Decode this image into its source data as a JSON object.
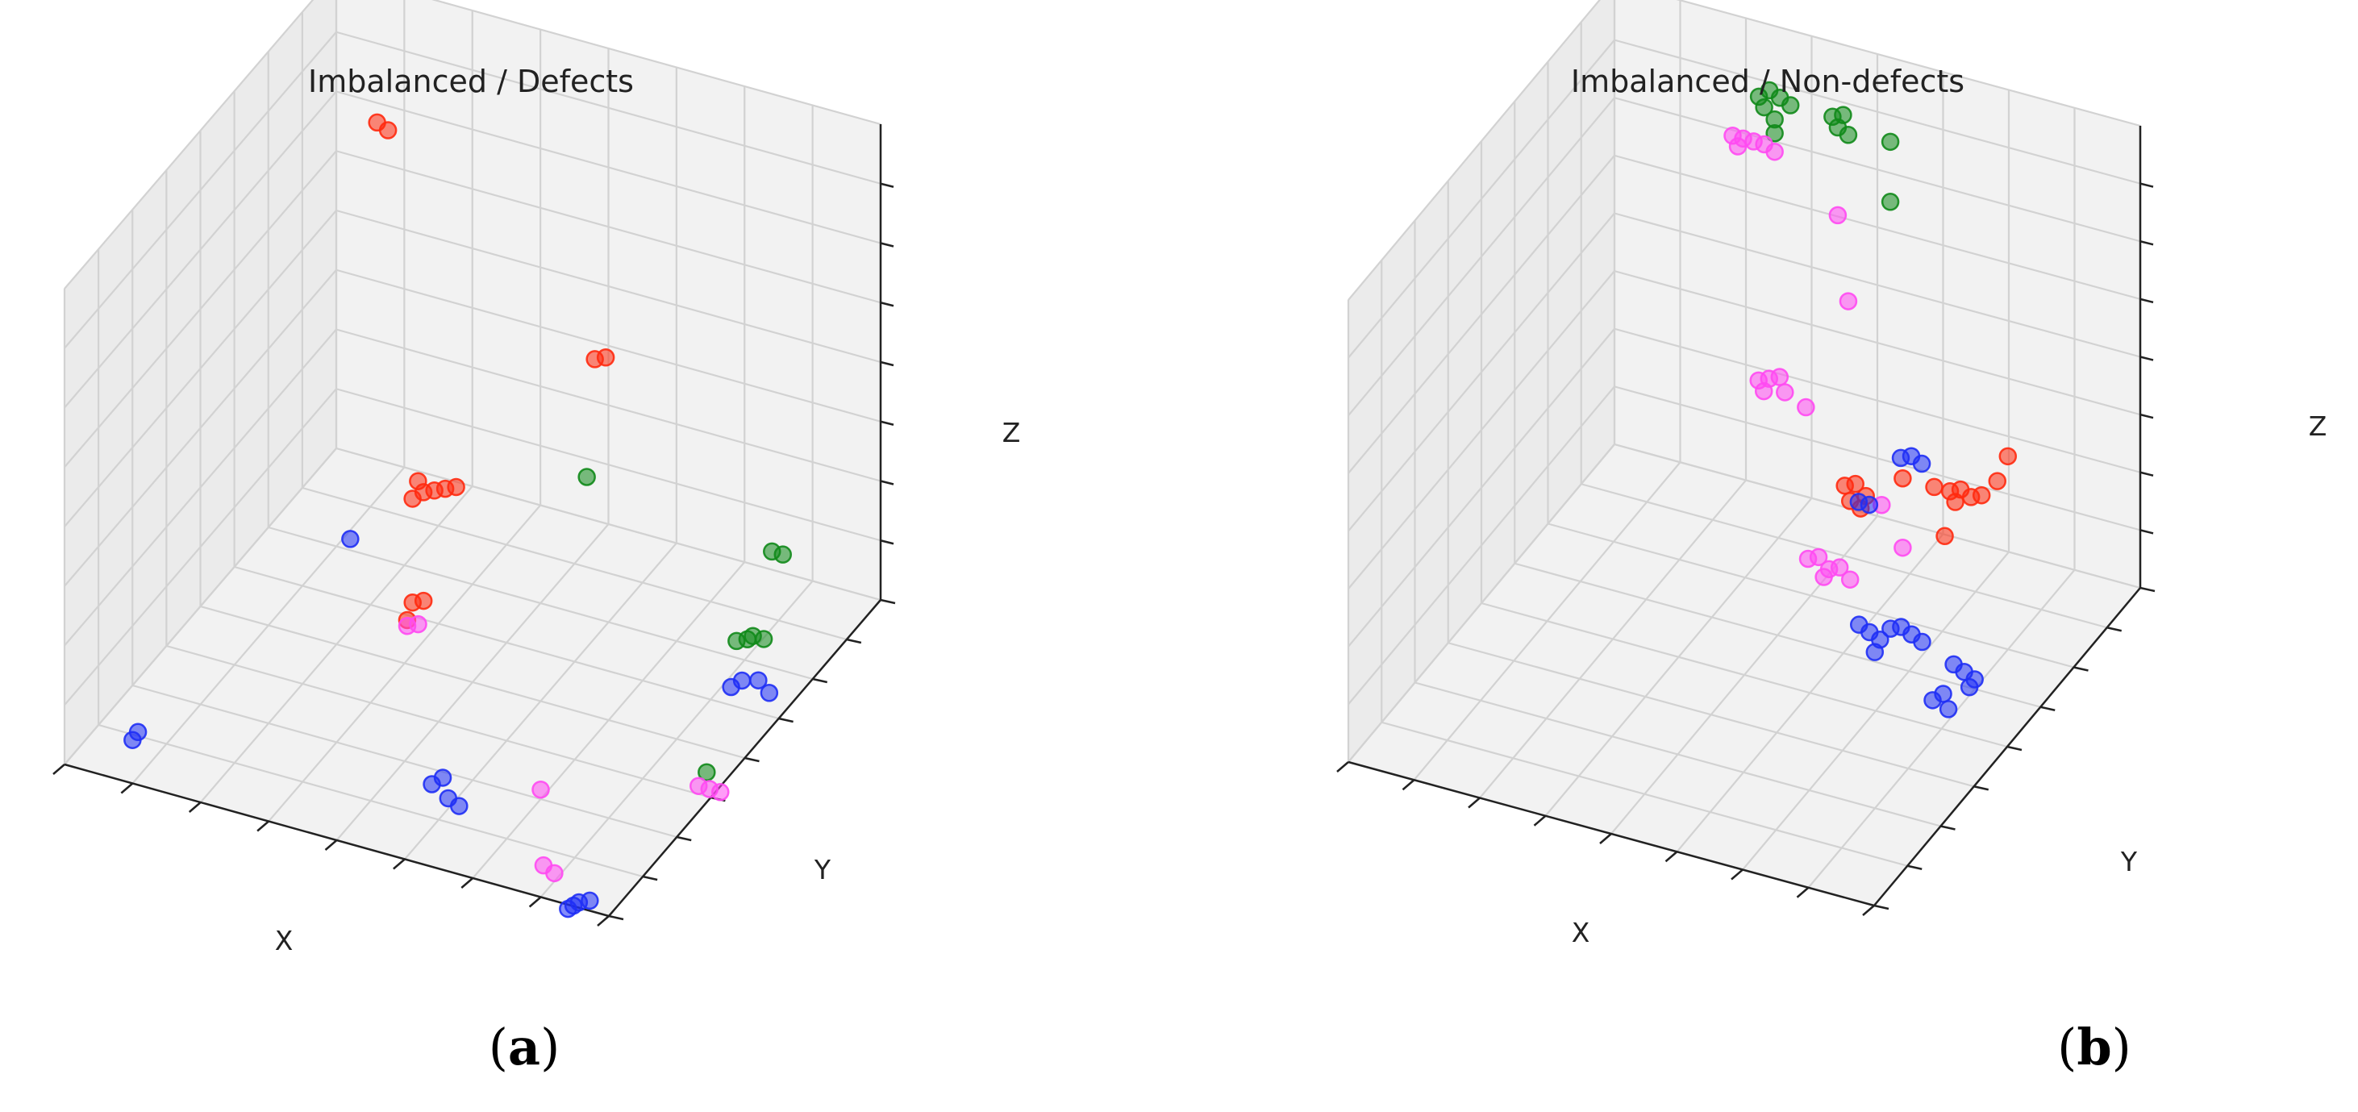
{
  "colors": {
    "red": "#ff2a0f",
    "blue": "#1f2ff5",
    "green": "#118a1a",
    "magenta": "#ff4af2",
    "pane": "#f2f2f2",
    "grid": "#d2d2d2"
  },
  "chart_data": [
    {
      "type": "scatter3d",
      "title": "Imbalanced / Defects",
      "xlabel": "X",
      "ylabel": "Y",
      "zlabel": "Z",
      "caption": {
        "open": "(",
        "letter": "a",
        "close": ")"
      },
      "grid": true,
      "points": [
        {
          "x": 0.1,
          "y": 0.95,
          "z": 0.75,
          "color": "red"
        },
        {
          "x": 0.12,
          "y": 0.95,
          "z": 0.74,
          "color": "red"
        },
        {
          "x": 0.5,
          "y": 0.95,
          "z": 0.38,
          "color": "red"
        },
        {
          "x": 0.52,
          "y": 0.95,
          "z": 0.39,
          "color": "red"
        },
        {
          "x": 0.25,
          "y": 0.78,
          "z": 0.12,
          "color": "red"
        },
        {
          "x": 0.27,
          "y": 0.78,
          "z": 0.14,
          "color": "red"
        },
        {
          "x": 0.29,
          "y": 0.78,
          "z": 0.15,
          "color": "red"
        },
        {
          "x": 0.31,
          "y": 0.78,
          "z": 0.16,
          "color": "red"
        },
        {
          "x": 0.33,
          "y": 0.78,
          "z": 0.17,
          "color": "red"
        },
        {
          "x": 0.26,
          "y": 0.78,
          "z": 0.16,
          "color": "red"
        },
        {
          "x": 0.34,
          "y": 0.6,
          "z": 0.05,
          "color": "red"
        },
        {
          "x": 0.36,
          "y": 0.6,
          "z": 0.06,
          "color": "red"
        },
        {
          "x": 0.33,
          "y": 0.6,
          "z": 0.01,
          "color": "red"
        },
        {
          "x": 0.5,
          "y": 0.05,
          "z": 0.6,
          "color": "blue"
        },
        {
          "x": 0.1,
          "y": 0.05,
          "z": 0.05,
          "color": "blue"
        },
        {
          "x": 0.11,
          "y": 0.05,
          "z": 0.07,
          "color": "blue"
        },
        {
          "x": 0.6,
          "y": 0.15,
          "z": 0.05,
          "color": "blue"
        },
        {
          "x": 0.62,
          "y": 0.15,
          "z": 0.07,
          "color": "blue"
        },
        {
          "x": 0.63,
          "y": 0.15,
          "z": 0.03,
          "color": "blue"
        },
        {
          "x": 0.65,
          "y": 0.15,
          "z": 0.02,
          "color": "blue"
        },
        {
          "x": 0.9,
          "y": 0.05,
          "z": -0.05,
          "color": "blue"
        },
        {
          "x": 0.91,
          "y": 0.05,
          "z": -0.04,
          "color": "blue"
        },
        {
          "x": 0.92,
          "y": 0.05,
          "z": -0.03,
          "color": "blue"
        },
        {
          "x": 0.94,
          "y": 0.05,
          "z": -0.02,
          "color": "blue"
        },
        {
          "x": 0.95,
          "y": 0.55,
          "z": 0.1,
          "color": "blue"
        },
        {
          "x": 0.97,
          "y": 0.55,
          "z": 0.12,
          "color": "blue"
        },
        {
          "x": 1.0,
          "y": 0.55,
          "z": 0.13,
          "color": "blue"
        },
        {
          "x": 1.02,
          "y": 0.55,
          "z": 0.11,
          "color": "blue"
        },
        {
          "x": 0.62,
          "y": 0.68,
          "z": 0.35,
          "color": "green"
        },
        {
          "x": 0.96,
          "y": 0.55,
          "z": 0.2,
          "color": "green"
        },
        {
          "x": 0.98,
          "y": 0.55,
          "z": 0.21,
          "color": "green"
        },
        {
          "x": 0.99,
          "y": 0.55,
          "z": 0.22,
          "color": "green"
        },
        {
          "x": 1.01,
          "y": 0.55,
          "z": 0.22,
          "color": "green"
        },
        {
          "x": 0.98,
          "y": 0.4,
          "z": 0.03,
          "color": "green"
        },
        {
          "x": 1.05,
          "y": 0.5,
          "z": 0.45,
          "color": "green"
        },
        {
          "x": 1.07,
          "y": 0.5,
          "z": 0.45,
          "color": "green"
        },
        {
          "x": 0.38,
          "y": 0.5,
          "z": 0.08,
          "color": "magenta"
        },
        {
          "x": 0.4,
          "y": 0.5,
          "z": 0.09,
          "color": "magenta"
        },
        {
          "x": 0.75,
          "y": 0.25,
          "z": 0.02,
          "color": "magenta"
        },
        {
          "x": 0.79,
          "y": 0.18,
          "z": -0.08,
          "color": "magenta"
        },
        {
          "x": 0.81,
          "y": 0.18,
          "z": -0.09,
          "color": "magenta"
        },
        {
          "x": 1.04,
          "y": 0.25,
          "z": 0.12,
          "color": "magenta"
        },
        {
          "x": 1.06,
          "y": 0.25,
          "z": 0.12,
          "color": "magenta"
        },
        {
          "x": 1.08,
          "y": 0.25,
          "z": 0.12,
          "color": "magenta"
        }
      ]
    },
    {
      "type": "scatter3d",
      "title": "Imbalanced / Non-defects",
      "xlabel": "X",
      "ylabel": "Y",
      "zlabel": "Z",
      "caption": {
        "open": "(",
        "letter": "b",
        "close": ")"
      },
      "grid": true,
      "points": [
        {
          "x": 0.3,
          "y": 0.95,
          "z": 0.88,
          "color": "green"
        },
        {
          "x": 0.32,
          "y": 0.95,
          "z": 0.9,
          "color": "green"
        },
        {
          "x": 0.34,
          "y": 0.95,
          "z": 0.89,
          "color": "green"
        },
        {
          "x": 0.36,
          "y": 0.95,
          "z": 0.88,
          "color": "green"
        },
        {
          "x": 0.31,
          "y": 0.95,
          "z": 0.86,
          "color": "green"
        },
        {
          "x": 0.33,
          "y": 0.95,
          "z": 0.84,
          "color": "green"
        },
        {
          "x": 0.44,
          "y": 0.95,
          "z": 0.88,
          "color": "green"
        },
        {
          "x": 0.46,
          "y": 0.95,
          "z": 0.89,
          "color": "green"
        },
        {
          "x": 0.45,
          "y": 0.95,
          "z": 0.86,
          "color": "green"
        },
        {
          "x": 0.47,
          "y": 0.95,
          "z": 0.85,
          "color": "green"
        },
        {
          "x": 0.55,
          "y": 0.95,
          "z": 0.86,
          "color": "green"
        },
        {
          "x": 0.33,
          "y": 0.95,
          "z": 0.81,
          "color": "green"
        },
        {
          "x": 0.55,
          "y": 0.95,
          "z": 0.73,
          "color": "green"
        },
        {
          "x": 0.25,
          "y": 0.95,
          "z": 0.78,
          "color": "magenta"
        },
        {
          "x": 0.27,
          "y": 0.95,
          "z": 0.78,
          "color": "magenta"
        },
        {
          "x": 0.29,
          "y": 0.95,
          "z": 0.78,
          "color": "magenta"
        },
        {
          "x": 0.31,
          "y": 0.95,
          "z": 0.78,
          "color": "magenta"
        },
        {
          "x": 0.33,
          "y": 0.95,
          "z": 0.77,
          "color": "magenta"
        },
        {
          "x": 0.26,
          "y": 0.95,
          "z": 0.76,
          "color": "magenta"
        },
        {
          "x": 0.45,
          "y": 0.95,
          "z": 0.67,
          "color": "magenta"
        },
        {
          "x": 0.47,
          "y": 0.95,
          "z": 0.49,
          "color": "magenta"
        },
        {
          "x": 0.35,
          "y": 0.85,
          "z": 0.35,
          "color": "magenta"
        },
        {
          "x": 0.37,
          "y": 0.85,
          "z": 0.36,
          "color": "magenta"
        },
        {
          "x": 0.39,
          "y": 0.85,
          "z": 0.37,
          "color": "magenta"
        },
        {
          "x": 0.36,
          "y": 0.85,
          "z": 0.33,
          "color": "magenta"
        },
        {
          "x": 0.4,
          "y": 0.85,
          "z": 0.34,
          "color": "magenta"
        },
        {
          "x": 0.44,
          "y": 0.85,
          "z": 0.32,
          "color": "magenta"
        },
        {
          "x": 0.52,
          "y": 0.7,
          "z": 0.12,
          "color": "magenta"
        },
        {
          "x": 0.54,
          "y": 0.7,
          "z": 0.13,
          "color": "magenta"
        },
        {
          "x": 0.56,
          "y": 0.7,
          "z": 0.11,
          "color": "magenta"
        },
        {
          "x": 0.58,
          "y": 0.7,
          "z": 0.12,
          "color": "magenta"
        },
        {
          "x": 0.6,
          "y": 0.7,
          "z": 0.1,
          "color": "magenta"
        },
        {
          "x": 0.55,
          "y": 0.7,
          "z": 0.09,
          "color": "magenta"
        },
        {
          "x": 0.66,
          "y": 0.7,
          "z": 0.28,
          "color": "magenta"
        },
        {
          "x": 0.7,
          "y": 0.7,
          "z": 0.2,
          "color": "magenta"
        },
        {
          "x": 0.59,
          "y": 0.7,
          "z": 0.3,
          "color": "red"
        },
        {
          "x": 0.61,
          "y": 0.7,
          "z": 0.31,
          "color": "red"
        },
        {
          "x": 0.63,
          "y": 0.7,
          "z": 0.29,
          "color": "red"
        },
        {
          "x": 0.6,
          "y": 0.7,
          "z": 0.27,
          "color": "red"
        },
        {
          "x": 0.62,
          "y": 0.7,
          "z": 0.26,
          "color": "red"
        },
        {
          "x": 0.76,
          "y": 0.7,
          "z": 0.35,
          "color": "red"
        },
        {
          "x": 0.79,
          "y": 0.7,
          "z": 0.35,
          "color": "red"
        },
        {
          "x": 0.81,
          "y": 0.7,
          "z": 0.36,
          "color": "red"
        },
        {
          "x": 0.83,
          "y": 0.7,
          "z": 0.35,
          "color": "red"
        },
        {
          "x": 0.85,
          "y": 0.7,
          "z": 0.36,
          "color": "red"
        },
        {
          "x": 0.8,
          "y": 0.7,
          "z": 0.33,
          "color": "red"
        },
        {
          "x": 0.88,
          "y": 0.7,
          "z": 0.4,
          "color": "red"
        },
        {
          "x": 0.9,
          "y": 0.7,
          "z": 0.46,
          "color": "red"
        },
        {
          "x": 0.7,
          "y": 0.7,
          "z": 0.35,
          "color": "red"
        },
        {
          "x": 0.78,
          "y": 0.7,
          "z": 0.25,
          "color": "red"
        },
        {
          "x": 1.0,
          "y": 0.1,
          "z": 0.9,
          "color": "blue"
        },
        {
          "x": 1.02,
          "y": 0.1,
          "z": 0.91,
          "color": "blue"
        },
        {
          "x": 1.04,
          "y": 0.1,
          "z": 0.9,
          "color": "blue"
        },
        {
          "x": 0.92,
          "y": 0.1,
          "z": 0.78,
          "color": "blue"
        },
        {
          "x": 0.94,
          "y": 0.1,
          "z": 0.78,
          "color": "blue"
        },
        {
          "x": 0.87,
          "y": 0.2,
          "z": 0.43,
          "color": "blue"
        },
        {
          "x": 0.89,
          "y": 0.2,
          "z": 0.42,
          "color": "blue"
        },
        {
          "x": 0.91,
          "y": 0.2,
          "z": 0.41,
          "color": "blue"
        },
        {
          "x": 0.93,
          "y": 0.2,
          "z": 0.44,
          "color": "blue"
        },
        {
          "x": 0.95,
          "y": 0.2,
          "z": 0.45,
          "color": "blue"
        },
        {
          "x": 0.97,
          "y": 0.2,
          "z": 0.44,
          "color": "blue"
        },
        {
          "x": 0.99,
          "y": 0.2,
          "z": 0.43,
          "color": "blue"
        },
        {
          "x": 0.9,
          "y": 0.2,
          "z": 0.38,
          "color": "blue"
        },
        {
          "x": 1.05,
          "y": 0.2,
          "z": 0.4,
          "color": "blue"
        },
        {
          "x": 1.07,
          "y": 0.2,
          "z": 0.39,
          "color": "blue"
        },
        {
          "x": 1.09,
          "y": 0.2,
          "z": 0.38,
          "color": "blue"
        },
        {
          "x": 1.08,
          "y": 0.2,
          "z": 0.36,
          "color": "blue"
        },
        {
          "x": 1.03,
          "y": 0.2,
          "z": 0.33,
          "color": "blue"
        },
        {
          "x": 1.01,
          "y": 0.2,
          "z": 0.31,
          "color": "blue"
        },
        {
          "x": 1.04,
          "y": 0.2,
          "z": 0.3,
          "color": "blue"
        }
      ]
    }
  ]
}
